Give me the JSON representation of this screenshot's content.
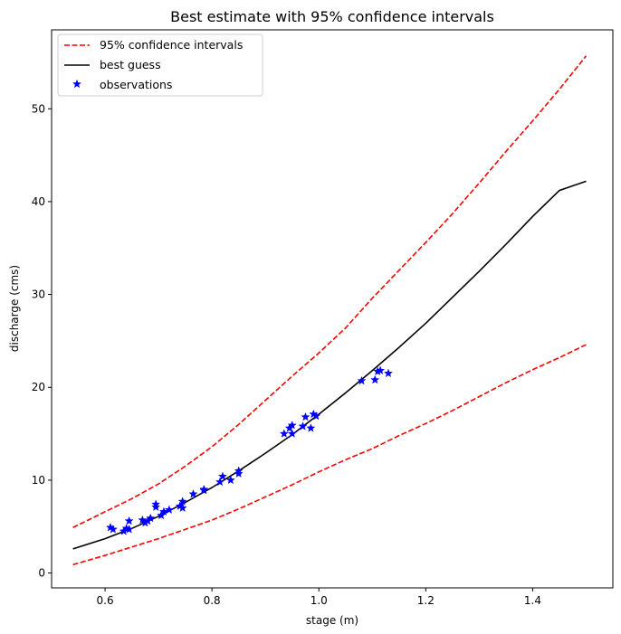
{
  "chart_data": {
    "type": "line",
    "title": "Best estimate with 95% confidence intervals",
    "xlabel": "stage (m)",
    "ylabel": "discharge (cms)",
    "xlim": [
      0.5,
      1.55
    ],
    "ylim": [
      -1.6,
      58.5
    ],
    "xticks": [
      0.6,
      0.8,
      1.0,
      1.2,
      1.4
    ],
    "xtick_labels": [
      "0.6",
      "0.8",
      "1.0",
      "1.2",
      "1.4"
    ],
    "yticks": [
      0,
      10,
      20,
      30,
      40,
      50
    ],
    "ytick_labels": [
      "0",
      "10",
      "20",
      "30",
      "40",
      "50"
    ],
    "grid": false,
    "legend_position": "top-left",
    "legend": [
      {
        "label": "95% confidence intervals",
        "style": "dashed-line",
        "color": "#ff0000"
      },
      {
        "label": "best guess",
        "style": "solid-line",
        "color": "#000000"
      },
      {
        "label": "observations",
        "style": "star-marker",
        "color": "#0000ff"
      }
    ],
    "series": [
      {
        "name": "95% confidence intervals",
        "role": "upper",
        "color": "#ff0000",
        "style": "dashed",
        "x": [
          0.54,
          0.6,
          0.65,
          0.7,
          0.75,
          0.8,
          0.85,
          0.9,
          0.95,
          1.0,
          1.05,
          1.1,
          1.15,
          1.2,
          1.25,
          1.3,
          1.35,
          1.4,
          1.45,
          1.5
        ],
        "y": [
          4.9,
          6.6,
          8.0,
          9.6,
          11.5,
          13.6,
          16.0,
          18.6,
          21.2,
          23.7,
          26.4,
          29.6,
          32.6,
          35.6,
          38.7,
          42.0,
          45.4,
          48.7,
          52.1,
          55.7
        ]
      },
      {
        "name": "best guess",
        "color": "#000000",
        "style": "solid",
        "x": [
          0.54,
          0.6,
          0.65,
          0.7,
          0.75,
          0.8,
          0.85,
          0.9,
          0.95,
          1.0,
          1.05,
          1.1,
          1.15,
          1.2,
          1.25,
          1.3,
          1.35,
          1.4,
          1.45,
          1.5
        ],
        "y": [
          2.6,
          3.7,
          4.8,
          6.1,
          7.6,
          9.2,
          11.0,
          12.9,
          14.9,
          17.1,
          19.4,
          21.8,
          24.3,
          26.9,
          29.7,
          32.5,
          35.4,
          38.4,
          41.2,
          42.2
        ]
      },
      {
        "name": "95% confidence intervals",
        "role": "lower",
        "color": "#ff0000",
        "style": "dashed",
        "x": [
          0.54,
          0.6,
          0.65,
          0.7,
          0.75,
          0.8,
          0.85,
          0.9,
          0.95,
          1.0,
          1.05,
          1.1,
          1.15,
          1.2,
          1.25,
          1.3,
          1.35,
          1.4,
          1.45,
          1.5
        ],
        "y": [
          0.9,
          1.9,
          2.8,
          3.7,
          4.7,
          5.7,
          6.9,
          8.2,
          9.5,
          10.9,
          12.2,
          13.4,
          14.8,
          16.1,
          17.5,
          19.0,
          20.5,
          21.9,
          23.2,
          24.6
        ]
      }
    ],
    "observations": {
      "name": "observations",
      "color": "#0000ff",
      "marker": "star",
      "points": [
        [
          0.61,
          4.9
        ],
        [
          0.615,
          4.7
        ],
        [
          0.635,
          4.5
        ],
        [
          0.64,
          4.8
        ],
        [
          0.645,
          4.7
        ],
        [
          0.645,
          5.6
        ],
        [
          0.67,
          5.7
        ],
        [
          0.675,
          5.4
        ],
        [
          0.68,
          5.6
        ],
        [
          0.685,
          5.9
        ],
        [
          0.695,
          7.1
        ],
        [
          0.695,
          7.4
        ],
        [
          0.705,
          6.2
        ],
        [
          0.71,
          6.6
        ],
        [
          0.72,
          6.8
        ],
        [
          0.74,
          7.2
        ],
        [
          0.745,
          7.7
        ],
        [
          0.745,
          7.0
        ],
        [
          0.765,
          8.5
        ],
        [
          0.785,
          9.0
        ],
        [
          0.785,
          8.9
        ],
        [
          0.815,
          9.8
        ],
        [
          0.82,
          10.4
        ],
        [
          0.835,
          10.0
        ],
        [
          0.85,
          10.7
        ],
        [
          0.85,
          11.0
        ],
        [
          0.935,
          15.0
        ],
        [
          0.945,
          15.6
        ],
        [
          0.95,
          15.0
        ],
        [
          0.95,
          15.9
        ],
        [
          0.97,
          15.8
        ],
        [
          0.975,
          16.8
        ],
        [
          0.985,
          15.6
        ],
        [
          0.99,
          17.1
        ],
        [
          0.995,
          16.9
        ],
        [
          1.08,
          20.7
        ],
        [
          1.105,
          20.8
        ],
        [
          1.11,
          21.7
        ],
        [
          1.115,
          21.8
        ],
        [
          1.13,
          21.5
        ]
      ]
    }
  }
}
